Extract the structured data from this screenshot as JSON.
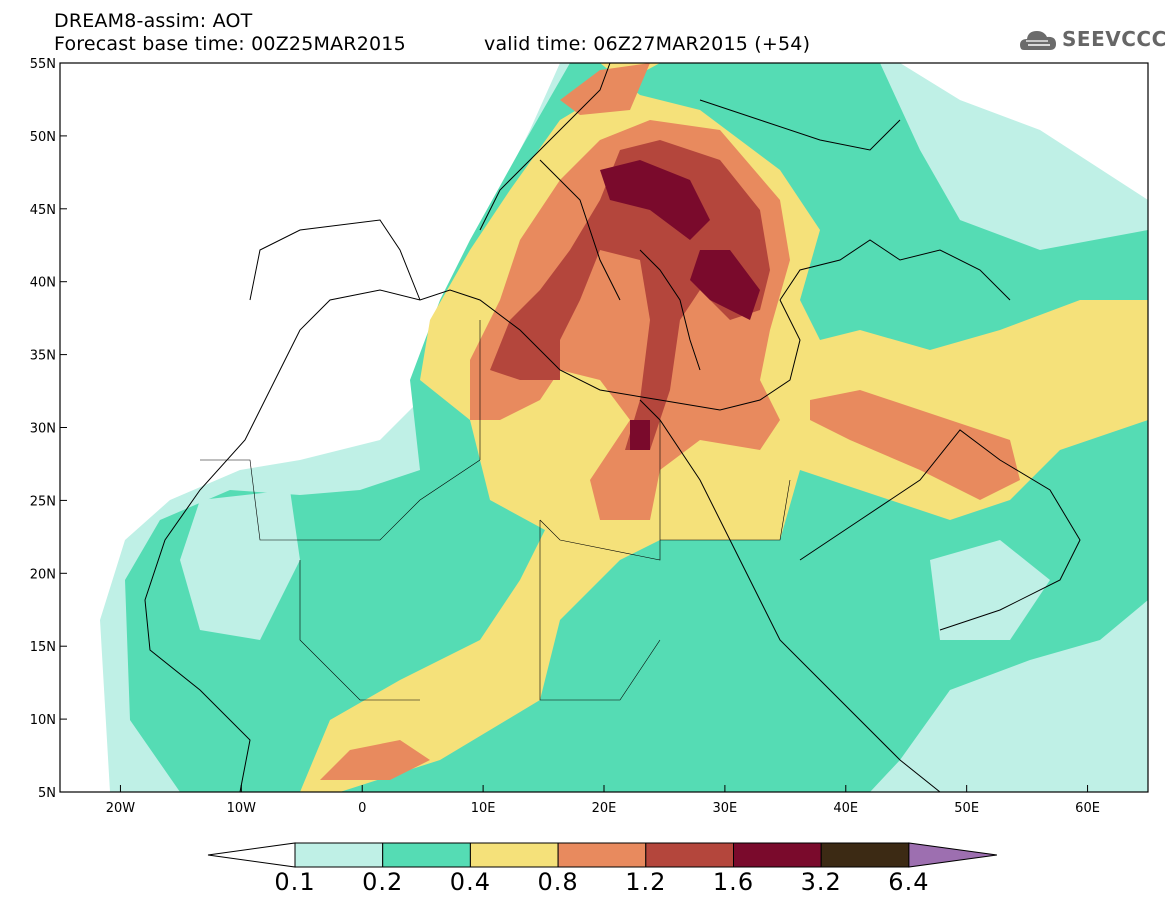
{
  "header": {
    "title": "DREAM8-assim: AOT",
    "base_time": "Forecast base time: 00Z25MAR2015",
    "valid_time": "valid time: 06Z27MAR2015 (+54)"
  },
  "logo": {
    "text": "SEEVCCC",
    "icon": "cloud-icon"
  },
  "map": {
    "lon_range": [
      -25,
      65
    ],
    "lat_range": [
      5,
      55
    ],
    "lat_ticks": [
      {
        "value": 55,
        "label": "55N"
      },
      {
        "value": 50,
        "label": "50N"
      },
      {
        "value": 45,
        "label": "45N"
      },
      {
        "value": 40,
        "label": "40N"
      },
      {
        "value": 35,
        "label": "35N"
      },
      {
        "value": 30,
        "label": "30N"
      },
      {
        "value": 25,
        "label": "25N"
      },
      {
        "value": 20,
        "label": "20N"
      },
      {
        "value": 15,
        "label": "15N"
      },
      {
        "value": 10,
        "label": "10N"
      },
      {
        "value": 5,
        "label": "5N"
      }
    ],
    "lon_ticks": [
      {
        "value": -20,
        "label": "20W"
      },
      {
        "value": -10,
        "label": "10W"
      },
      {
        "value": 0,
        "label": "0"
      },
      {
        "value": 10,
        "label": "10E"
      },
      {
        "value": 20,
        "label": "20E"
      },
      {
        "value": 30,
        "label": "30E"
      },
      {
        "value": 40,
        "label": "40E"
      },
      {
        "value": 50,
        "label": "50E"
      },
      {
        "value": 60,
        "label": "60E"
      }
    ]
  },
  "colorbar": {
    "labels": [
      "0.1",
      "0.2",
      "0.4",
      "0.8",
      "1.2",
      "1.6",
      "3.2",
      "6.4"
    ],
    "colors": [
      "#ffffff",
      "#bff0e6",
      "#55dcb4",
      "#f5e17a",
      "#e88a5e",
      "#b4463c",
      "#7a0a2c",
      "#3c2a14",
      "#9d6fb0"
    ]
  }
}
